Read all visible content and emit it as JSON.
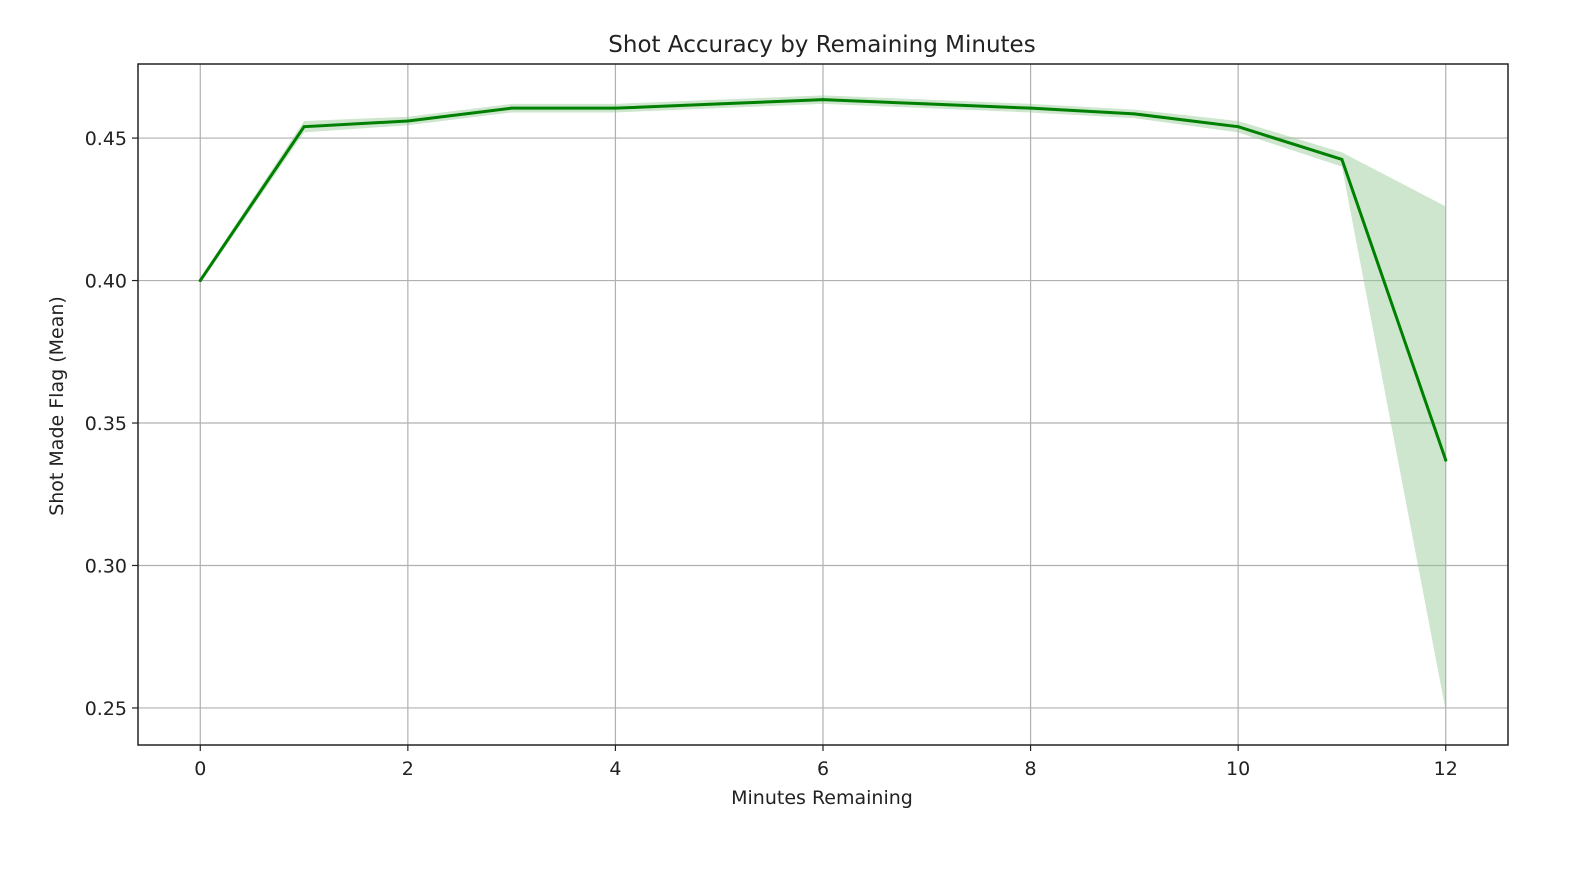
{
  "chart_data": {
    "type": "line",
    "title": "Shot Accuracy by Remaining Minutes",
    "xlabel": "Minutes Remaining",
    "ylabel": "Shot Made Flag (Mean)",
    "xlim": [
      -0.6,
      12.6
    ],
    "ylim": [
      0.237,
      0.476
    ],
    "x_ticks": [
      0,
      2,
      4,
      6,
      8,
      10,
      12
    ],
    "x_tick_labels": [
      "0",
      "2",
      "4",
      "6",
      "8",
      "10",
      "12"
    ],
    "y_ticks": [
      0.25,
      0.3,
      0.35,
      0.4,
      0.45
    ],
    "y_tick_labels": [
      "0.25",
      "0.30",
      "0.35",
      "0.40",
      "0.45"
    ],
    "grid": true,
    "legend": "none",
    "series": [
      {
        "x": [
          0,
          1,
          2,
          3,
          4,
          5,
          6,
          7,
          8,
          9,
          10,
          11,
          12
        ],
        "values": [
          0.4,
          0.454,
          0.456,
          0.4605,
          0.4605,
          0.462,
          0.4635,
          0.462,
          0.4605,
          0.4585,
          0.454,
          0.4425,
          0.337
        ],
        "ci_lower": [
          0.399,
          0.452,
          0.4545,
          0.459,
          0.459,
          0.4605,
          0.462,
          0.4605,
          0.459,
          0.457,
          0.452,
          0.44,
          0.249
        ],
        "ci_upper": [
          0.401,
          0.456,
          0.4575,
          0.462,
          0.462,
          0.4635,
          0.465,
          0.4635,
          0.462,
          0.46,
          0.456,
          0.445,
          0.426
        ],
        "color": "#008000",
        "band_color": "#90c890"
      }
    ]
  }
}
